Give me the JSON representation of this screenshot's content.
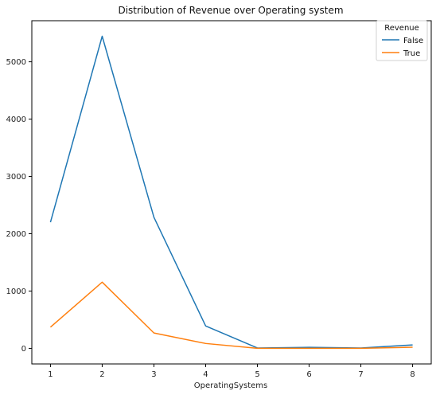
{
  "chart_data": {
    "type": "line",
    "title": "Distribution of Revenue over Operating system",
    "xlabel": "OperatingSystems",
    "ylabel": "",
    "x": [
      1,
      2,
      3,
      4,
      5,
      6,
      7,
      8
    ],
    "xticks": [
      "1",
      "2",
      "3",
      "4",
      "5",
      "6",
      "7",
      "8"
    ],
    "xlim": [
      0.64,
      8.36
    ],
    "ylim": [
      -272,
      5717
    ],
    "yticks": [
      0,
      1000,
      2000,
      3000,
      4000,
      5000
    ],
    "yticklabels": [
      "0",
      "1000",
      "2000",
      "3000",
      "4000",
      "5000"
    ],
    "legend": {
      "title": "Revenue",
      "position": "top-right"
    },
    "series": [
      {
        "name": "False",
        "color": "#1f77b4",
        "values": [
          2200,
          5446,
          2287,
          390,
          6,
          18,
          6,
          60
        ]
      },
      {
        "name": "True",
        "color": "#ff7f0e",
        "values": [
          369,
          1155,
          268,
          85,
          1,
          1,
          1,
          19
        ]
      }
    ],
    "grid": false
  }
}
